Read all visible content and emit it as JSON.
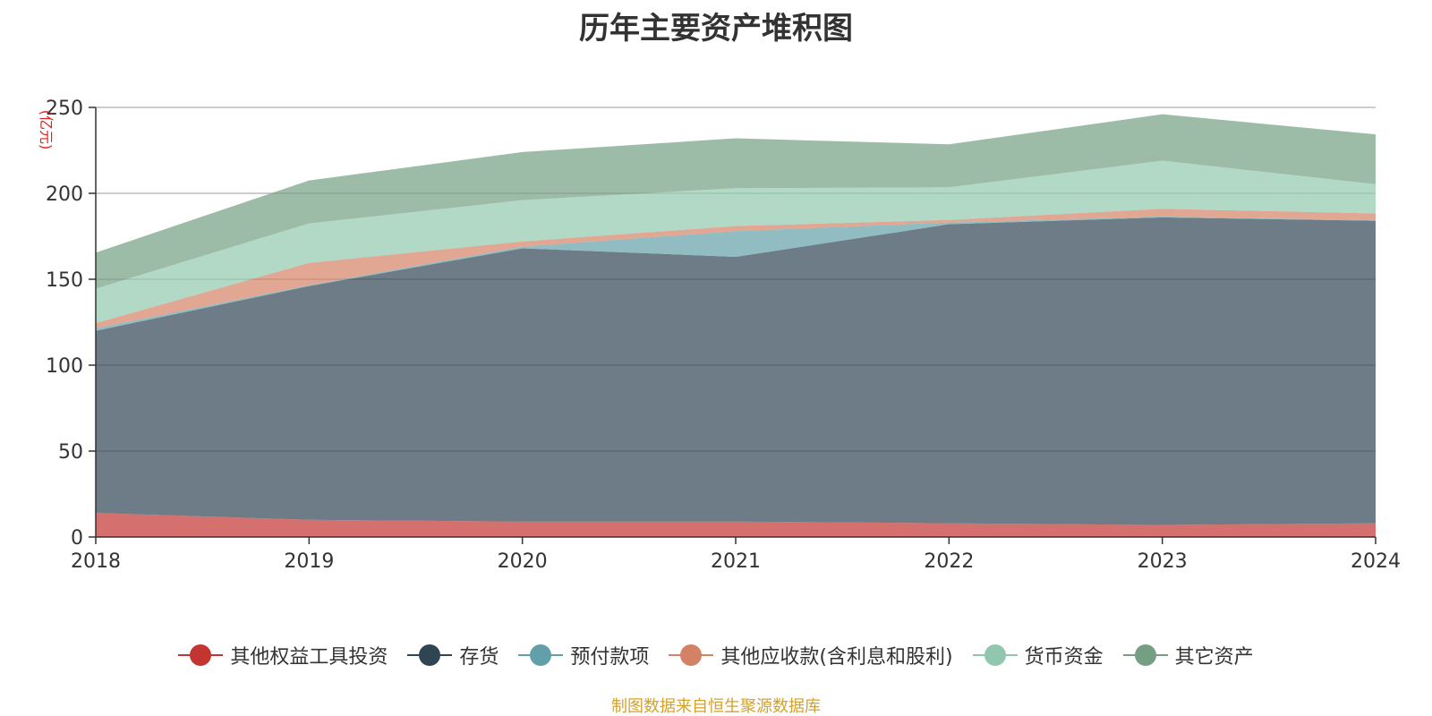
{
  "chart_data": {
    "type": "area",
    "stacked": true,
    "title": "历年主要资产堆积图",
    "unit_label": "(亿元)",
    "x": [
      "2018",
      "2019",
      "2020",
      "2021",
      "2022",
      "2023",
      "2024"
    ],
    "ylim": [
      0,
      250
    ],
    "yticks": [
      0,
      50,
      100,
      150,
      200,
      250
    ],
    "grid": true,
    "legend_position": "bottom",
    "series": [
      {
        "name": "其他权益工具投资",
        "color": "#c23531",
        "values": [
          14,
          10,
          9,
          9,
          8,
          7,
          8
        ]
      },
      {
        "name": "存货",
        "color": "#2f4554",
        "values": [
          106,
          136,
          159,
          154,
          174,
          179,
          176
        ]
      },
      {
        "name": "预付款项",
        "color": "#61a0a8",
        "values": [
          1.5,
          0.5,
          1,
          15,
          1,
          0.5,
          0.3
        ]
      },
      {
        "name": "其他应收款(含利息和股利)",
        "color": "#d48265",
        "values": [
          3,
          13,
          3,
          3,
          1.5,
          4.5,
          4
        ]
      },
      {
        "name": "货币资金",
        "color": "#91c7ae",
        "values": [
          20,
          23,
          24,
          22,
          19,
          28,
          17
        ]
      },
      {
        "name": "其它资产",
        "color": "#749f83",
        "values": [
          21,
          25,
          28,
          29,
          25,
          27,
          29
        ]
      }
    ]
  },
  "source_note": "制图数据来自恒生聚源数据库"
}
